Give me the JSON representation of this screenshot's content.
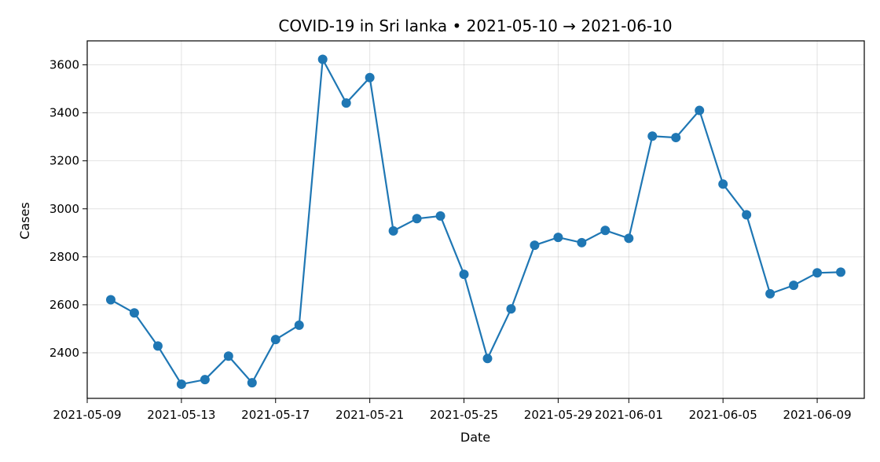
{
  "chart_data": {
    "type": "line",
    "title": "COVID-19 in Sri lanka • 2021-05-10 → 2021-06-10",
    "xlabel": "Date",
    "ylabel": "Cases",
    "x_ticks": [
      "2021-05-09",
      "2021-05-13",
      "2021-05-17",
      "2021-05-21",
      "2021-05-25",
      "2021-05-29",
      "2021-06-01",
      "2021-06-05",
      "2021-06-09"
    ],
    "y_ticks": [
      2400,
      2600,
      2800,
      3000,
      3200,
      3400,
      3600
    ],
    "xlim": [
      "2021-05-09",
      "2021-06-11"
    ],
    "ylim": [
      2210,
      3700
    ],
    "grid": true,
    "color": "#1f77b4",
    "series": [
      {
        "x": [
          "2021-05-10",
          "2021-05-11",
          "2021-05-12",
          "2021-05-13",
          "2021-05-14",
          "2021-05-15",
          "2021-05-16",
          "2021-05-17",
          "2021-05-18",
          "2021-05-19",
          "2021-05-20",
          "2021-05-21",
          "2021-05-22",
          "2021-05-23",
          "2021-05-24",
          "2021-05-25",
          "2021-05-26",
          "2021-05-27",
          "2021-05-28",
          "2021-05-29",
          "2021-05-30",
          "2021-05-31",
          "2021-06-01",
          "2021-06-02",
          "2021-06-03",
          "2021-06-04",
          "2021-06-05",
          "2021-06-06",
          "2021-06-07",
          "2021-06-08",
          "2021-06-09",
          "2021-06-10"
        ],
        "y": [
          2621,
          2566,
          2428,
          2269,
          2288,
          2386,
          2275,
          2455,
          2515,
          3623,
          3441,
          3547,
          2908,
          2959,
          2970,
          2727,
          2376,
          2583,
          2848,
          2881,
          2859,
          2910,
          2877,
          3303,
          3297,
          3410,
          3103,
          2975,
          2646,
          2681,
          2733,
          2736
        ]
      }
    ]
  }
}
